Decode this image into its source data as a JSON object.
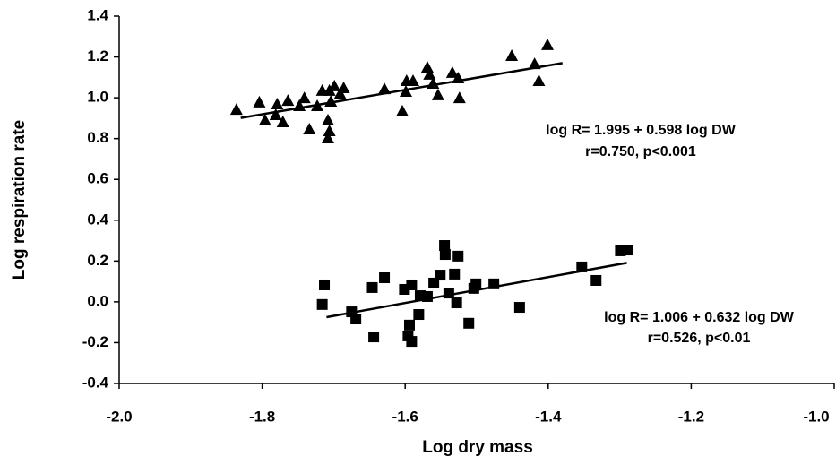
{
  "chart_data": {
    "type": "scatter",
    "x_label": "Log dry mass",
    "y_label": "Log respiration rate",
    "xlim": [
      -2.0,
      -1.0
    ],
    "xticks": [
      {
        "value": -2.0,
        "label": "-2.0"
      },
      -1.8,
      -1.6,
      -1.4,
      -1.2,
      {
        "value": -1.0,
        "label": "-1.0"
      }
    ],
    "ylim": [
      -0.4,
      1.4
    ],
    "yticks": [
      -0.4,
      -0.2,
      {
        "value": 0.0,
        "label": "0.0"
      },
      0.2,
      0.4,
      0.6,
      0.8,
      {
        "value": 1.0,
        "label": "1.0"
      },
      1.2,
      1.4
    ],
    "series": [
      {
        "marker": "triangle",
        "color": "#000000",
        "x": [
          -1.836,
          -1.804,
          -1.796,
          -1.781,
          -1.779,
          -1.771,
          -1.764,
          -1.748,
          -1.741,
          -1.734,
          -1.723,
          -1.716,
          -1.708,
          -1.706,
          -1.704,
          -1.706,
          -1.708,
          -1.699,
          -1.691,
          -1.686,
          -1.629,
          -1.604,
          -1.599,
          -1.598,
          -1.589,
          -1.569,
          -1.566,
          -1.561,
          -1.554,
          -1.534,
          -1.526,
          -1.524,
          -1.451,
          -1.419,
          -1.413,
          -1.401
        ],
        "values": [
          0.943,
          0.979,
          0.891,
          0.917,
          0.97,
          0.882,
          0.987,
          0.961,
          1.0,
          0.847,
          0.961,
          1.036,
          0.891,
          1.036,
          0.983,
          0.838,
          0.803,
          1.058,
          1.02,
          1.049,
          1.044,
          0.935,
          1.031,
          1.084,
          1.084,
          1.15,
          1.115,
          1.071,
          1.014,
          1.124,
          1.097,
          1.0,
          1.207,
          1.167,
          1.084,
          1.26
        ]
      },
      {
        "marker": "square",
        "color": "#000000",
        "x": [
          -1.716,
          -1.713,
          -1.675,
          -1.669,
          -1.646,
          -1.629,
          -1.644,
          -1.601,
          -1.596,
          -1.594,
          -1.591,
          -1.591,
          -1.581,
          -1.579,
          -1.569,
          -1.56,
          -1.551,
          -1.545,
          -1.544,
          -1.539,
          -1.531,
          -1.528,
          -1.526,
          -1.511,
          -1.504,
          -1.501,
          -1.476,
          -1.44,
          -1.353,
          -1.333,
          -1.299,
          -1.289
        ],
        "values": [
          -0.013,
          0.083,
          -0.049,
          -0.084,
          0.07,
          0.118,
          -0.172,
          0.061,
          -0.167,
          -0.114,
          0.083,
          -0.194,
          -0.062,
          0.03,
          0.026,
          0.092,
          0.131,
          0.276,
          0.232,
          0.043,
          0.136,
          -0.005,
          0.224,
          -0.105,
          0.066,
          0.088,
          0.088,
          -0.027,
          0.171,
          0.105,
          0.25,
          0.254
        ]
      }
    ],
    "fits": [
      {
        "color": "#000000",
        "x": [
          -1.83,
          -1.38
        ],
        "values": [
          0.901,
          1.17
        ]
      },
      {
        "color": "#000000",
        "x": [
          -1.71,
          -1.29
        ],
        "values": [
          -0.075,
          0.191
        ]
      }
    ],
    "annotations": [
      "log R= 1.995 + 0.598 log DW",
      "r=0.750, p<0.001",
      "log R= 1.006 + 0.632 log DW",
      "r=0.526, p<0.01"
    ]
  }
}
